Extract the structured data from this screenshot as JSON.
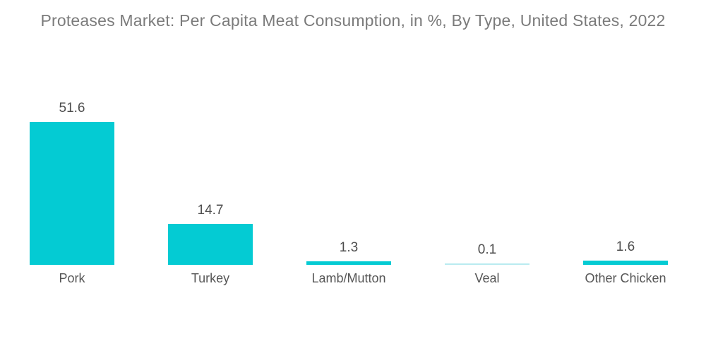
{
  "chart_data": {
    "type": "bar",
    "title": "Proteases Market: Per Capita Meat Consumption, in %, By Type, United States, 2022",
    "categories": [
      "Pork",
      "Turkey",
      "Lamb/Mutton",
      "Veal",
      "Other Chicken"
    ],
    "values": [
      51.6,
      14.7,
      1.3,
      0.1,
      1.6
    ],
    "value_labels": [
      "51.6",
      "14.7",
      "1.3",
      "0.1",
      "1.6"
    ],
    "xlabel": "",
    "ylabel": "",
    "ylim": [
      0,
      52
    ],
    "grid": false,
    "legend": false,
    "orientation": "vertical",
    "colors": {
      "bar": "#04CBD3",
      "faint_bar": "#B9EBF0",
      "title": "#7B7B7B",
      "value_label": "#4D4D4D",
      "category_label": "#565656",
      "background": "#FFFFFF"
    }
  }
}
